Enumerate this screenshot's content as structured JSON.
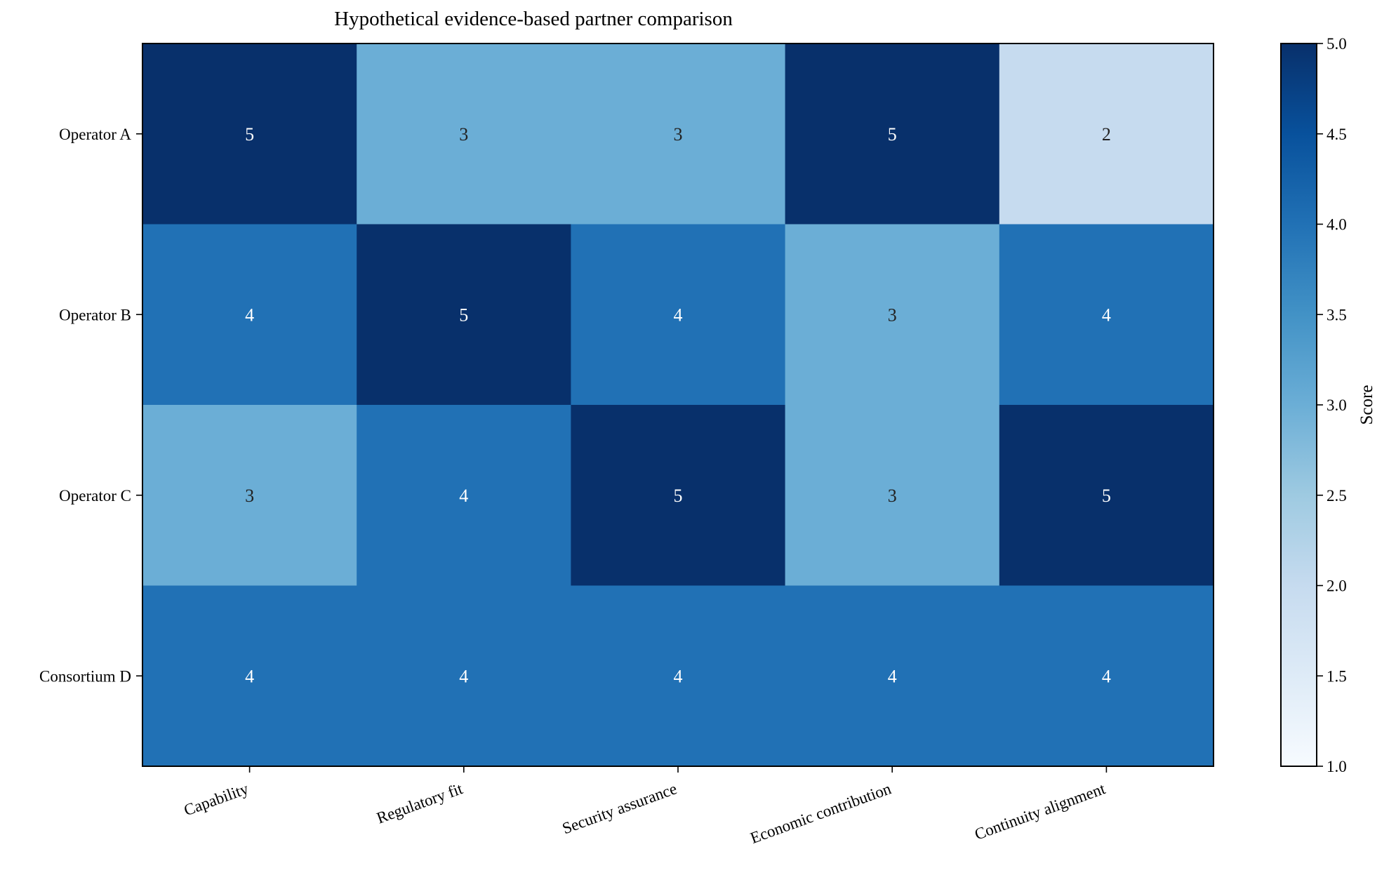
{
  "chart_data": {
    "type": "heatmap",
    "title": "Hypothetical evidence-based partner comparison",
    "rows": [
      "Operator A",
      "Operator B",
      "Operator C",
      "Consortium D"
    ],
    "columns": [
      "Capability",
      "Regulatory fit",
      "Security assurance",
      "Economic contribution",
      "Continuity alignment"
    ],
    "values": [
      [
        5,
        3,
        3,
        5,
        2
      ],
      [
        4,
        5,
        4,
        3,
        4
      ],
      [
        3,
        4,
        5,
        3,
        5
      ],
      [
        4,
        4,
        4,
        4,
        4
      ]
    ],
    "colorbar": {
      "label": "Score",
      "min": 1,
      "max": 5,
      "ticks": [
        "1.0",
        "1.5",
        "2.0",
        "2.5",
        "3.0",
        "3.5",
        "4.0",
        "4.5",
        "5.0"
      ]
    },
    "colormap": "Blues",
    "grid": false
  }
}
